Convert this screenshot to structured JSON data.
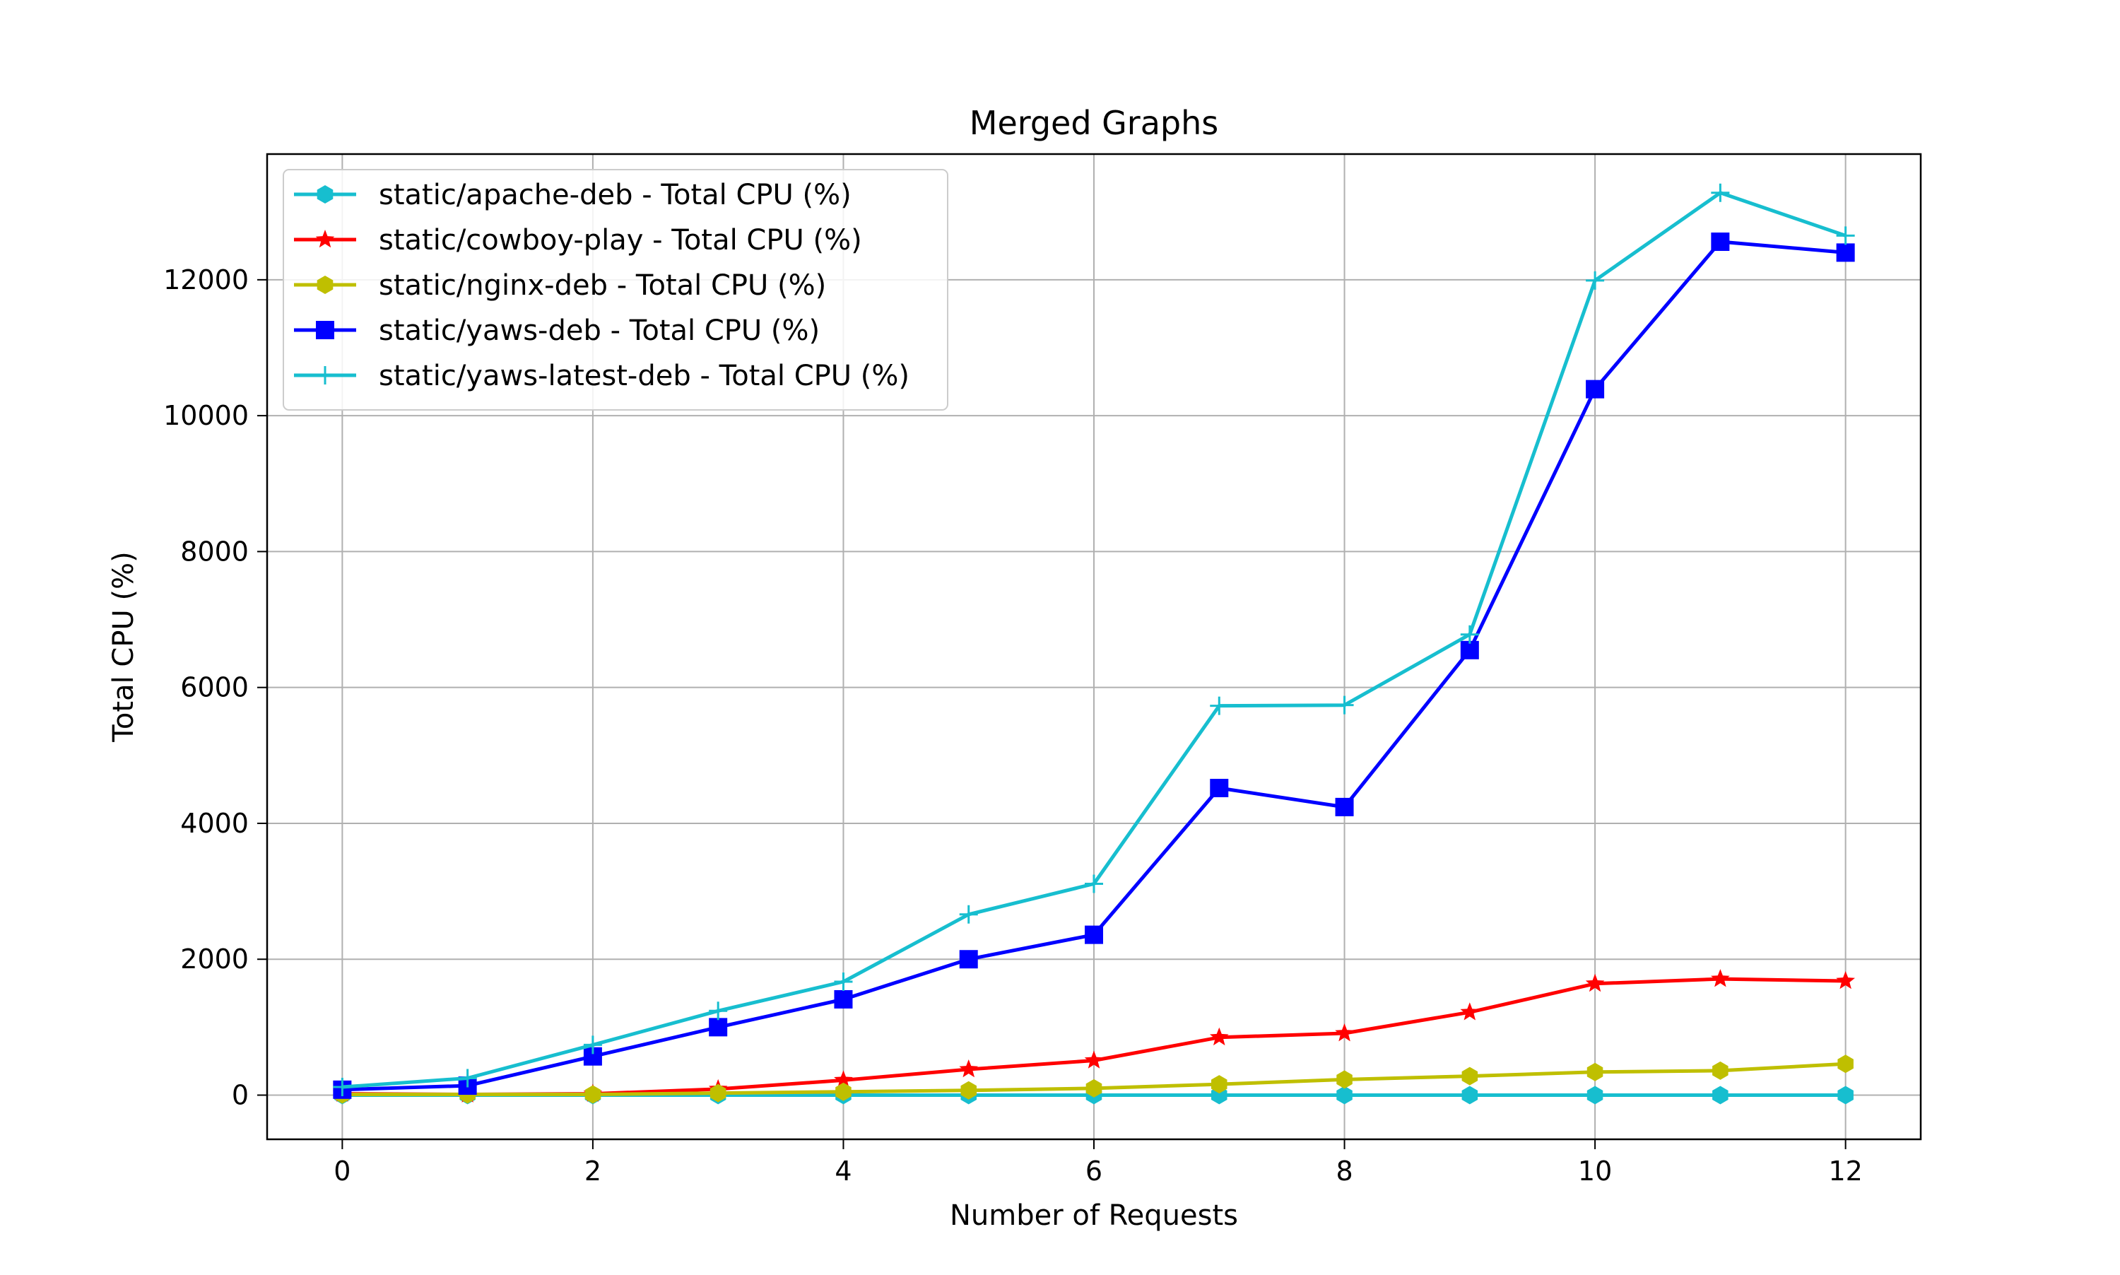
{
  "chart_data": {
    "type": "line",
    "title": "Merged Graphs",
    "xlabel": "Number of Requests",
    "ylabel": "Total CPU (%)",
    "xlim": [
      -0.6,
      12.6
    ],
    "ylim": [
      -650,
      13850
    ],
    "xticks": [
      0,
      2,
      4,
      6,
      8,
      10,
      12
    ],
    "yticks": [
      0,
      2000,
      4000,
      6000,
      8000,
      10000,
      12000
    ],
    "grid": true,
    "legend_position": "upper-left",
    "x": [
      0,
      1,
      2,
      3,
      4,
      5,
      6,
      7,
      8,
      9,
      10,
      11,
      12
    ],
    "series": [
      {
        "name": "static/apache-deb - Total CPU (%)",
        "color": "#17BECF",
        "marker": "hexagon",
        "values": [
          0,
          0,
          0,
          0,
          0,
          0,
          0,
          0,
          0,
          0,
          0,
          0,
          0
        ]
      },
      {
        "name": "static/cowboy-play - Total CPU (%)",
        "color": "#FF0000",
        "marker": "star",
        "values": [
          20,
          10,
          20,
          90,
          220,
          380,
          510,
          850,
          910,
          1220,
          1640,
          1710,
          1680
        ]
      },
      {
        "name": "static/nginx-deb - Total CPU (%)",
        "color": "#BFBF00",
        "marker": "hexagon",
        "values": [
          10,
          10,
          10,
          30,
          50,
          70,
          100,
          160,
          230,
          280,
          340,
          360,
          460
        ]
      },
      {
        "name": "static/yaws-deb - Total CPU (%)",
        "color": "#0000FF",
        "marker": "square",
        "values": [
          80,
          140,
          570,
          1000,
          1410,
          2000,
          2360,
          4520,
          4240,
          6550,
          10390,
          12560,
          12400
        ]
      },
      {
        "name": "static/yaws-latest-deb - Total CPU (%)",
        "color": "#17BECF",
        "marker": "plus",
        "values": [
          120,
          250,
          740,
          1240,
          1670,
          2660,
          3110,
          5730,
          5740,
          6780,
          11990,
          13280,
          12650
        ]
      }
    ]
  }
}
